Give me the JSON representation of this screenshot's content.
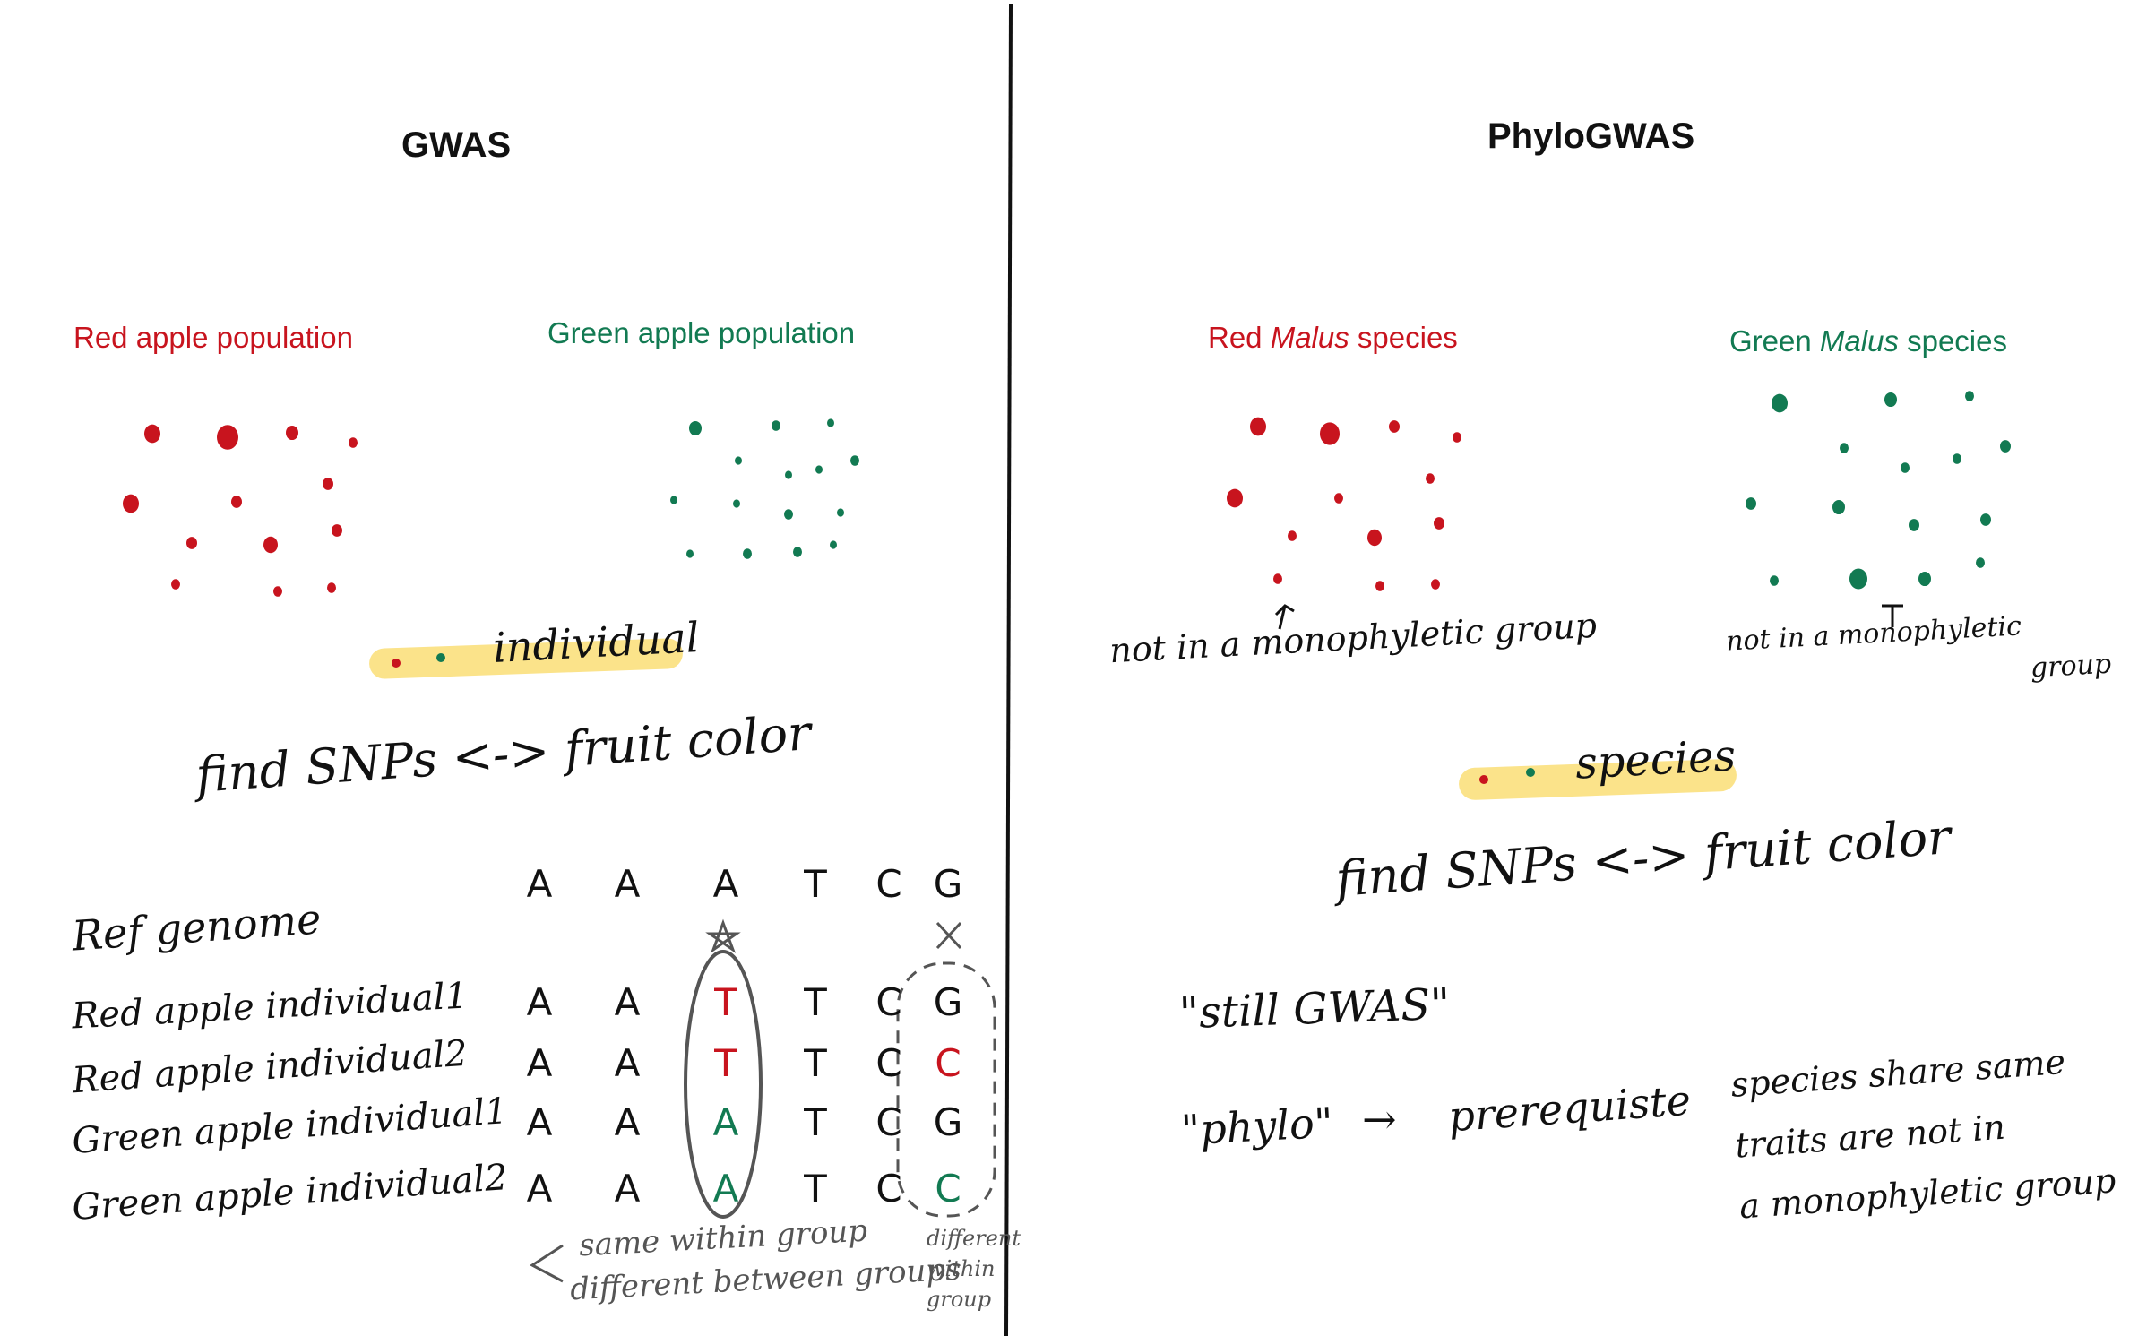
{
  "colors": {
    "red": "#c8141e",
    "green": "#127a52",
    "highlight": "#fbe38a",
    "ink": "#111111",
    "grey": "#555555"
  },
  "left": {
    "title": "GWAS",
    "red_group_label": "Red apple population",
    "green_group_label": "Green apple population",
    "legend_label": "individual",
    "find_text": "find SNPs <-> fruit color",
    "ref_label": "Ref genome",
    "ref_bases": [
      "A",
      "A",
      "A",
      "T",
      "C",
      "G"
    ],
    "rows": [
      {
        "label": "Red apple individual1",
        "bases": [
          "A",
          "A",
          "T",
          "T",
          "C",
          "G"
        ]
      },
      {
        "label": "Red apple individual2",
        "bases": [
          "A",
          "A",
          "T",
          "T",
          "C",
          "C"
        ]
      },
      {
        "label": "Green apple individual1",
        "bases": [
          "A",
          "A",
          "A",
          "T",
          "C",
          "G"
        ]
      },
      {
        "label": "Green apple individual2",
        "bases": [
          "A",
          "A",
          "A",
          "T",
          "C",
          "C"
        ]
      }
    ],
    "note_same": "same within group",
    "note_diff": "different between groups",
    "note_right": [
      "different",
      "within",
      "group"
    ]
  },
  "right": {
    "title": "PhyloGWAS",
    "red_group_label": {
      "pre": "Red ",
      "italic": "Malus",
      "post": " species"
    },
    "green_group_label": {
      "pre": "Green ",
      "italic": "Malus",
      "post": " species"
    },
    "red_note": "not in a monophyletic group",
    "green_note_1": "not in a monophyletic",
    "green_note_2": "group",
    "legend_label": "species",
    "find_text": "find SNPs <-> fruit color",
    "still": "\"still GWAS\"",
    "phylo": "\"phylo\"",
    "arrow": "→",
    "prereq": "prerequiste",
    "explain": [
      "species share same",
      "traits are not in",
      "a monophyletic group"
    ]
  }
}
